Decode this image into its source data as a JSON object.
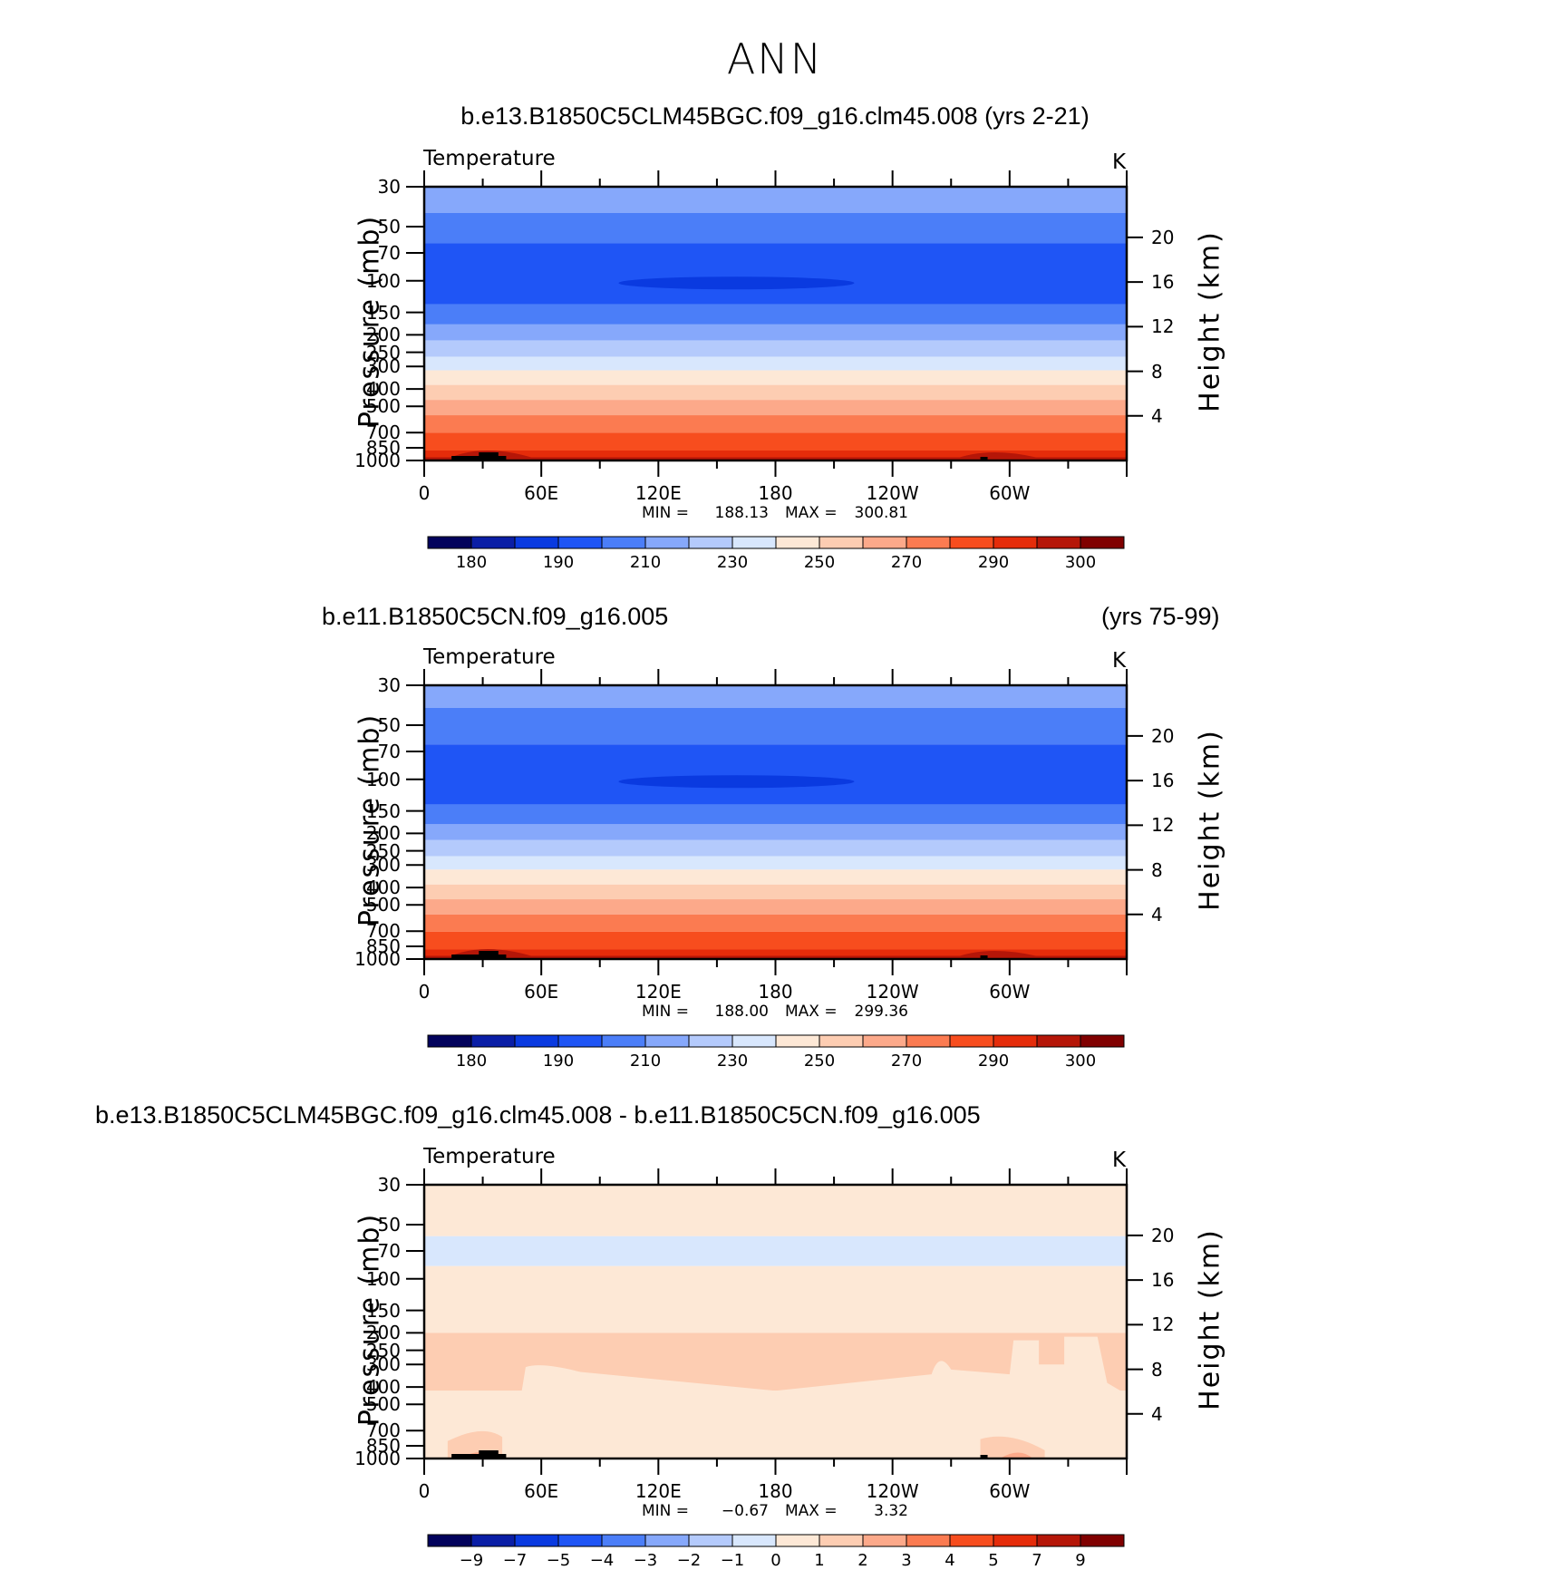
{
  "page": {
    "title": "ANN"
  },
  "chart_data": [
    {
      "type": "heatmap",
      "title": "b.e13.B1850C5CLM45BGC.f09_g16.clm45.008 (yrs 2-21)",
      "title_right": "",
      "variable": "Temperature",
      "units": "K",
      "ylabel": "Pressure (mb)",
      "ylabel_right": "Height (km)",
      "x_ticks": [
        "0",
        "60E",
        "120E",
        "180",
        "120W",
        "60W"
      ],
      "y_ticks": [
        "30",
        "50",
        "70",
        "100",
        "150",
        "200",
        "250",
        "300",
        "400",
        "500",
        "700",
        "850",
        "1000"
      ],
      "y_ticks_right": [
        "20",
        "16",
        "12",
        "8",
        "4"
      ],
      "min": 188.13,
      "max": 300.81,
      "min_label": "MIN =",
      "min_text": "188.13",
      "max_label": "MAX =",
      "max_text": "300.81",
      "colorbar_labels": [
        "180",
        "190",
        "210",
        "230",
        "250",
        "270",
        "290",
        "300"
      ],
      "colorbar_colors": [
        "#02025c",
        "#0a1ea6",
        "#0a3ae0",
        "#1f55f5",
        "#4b7ef8",
        "#86a8fb",
        "#b4cafc",
        "#d8e7fd",
        "#fde8d6",
        "#fdcdb2",
        "#fca98a",
        "#fb7b51",
        "#f74d1e",
        "#e52c0a",
        "#b51608",
        "#800000"
      ],
      "bands": [
        {
          "top": 30,
          "color": "#86a8fb"
        },
        {
          "top": 42,
          "color": "#4b7ef8"
        },
        {
          "top": 62,
          "color": "#1f55f5"
        },
        {
          "top": 135,
          "color": "#4b7ef8"
        },
        {
          "top": 175,
          "color": "#86a8fb"
        },
        {
          "top": 215,
          "color": "#b4cafc"
        },
        {
          "top": 265,
          "color": "#d8e7fd"
        },
        {
          "top": 315,
          "color": "#fde8d6"
        },
        {
          "top": 380,
          "color": "#fdcdb2"
        },
        {
          "top": 460,
          "color": "#fca98a"
        },
        {
          "top": 560,
          "color": "#fb7b51"
        },
        {
          "top": 700,
          "color": "#f74d1e"
        },
        {
          "top": 880,
          "color": "#e52c0a"
        }
      ]
    },
    {
      "type": "heatmap",
      "title": "b.e11.B1850C5CN.f09_g16.005",
      "title_right": "(yrs 75-99)",
      "variable": "Temperature",
      "units": "K",
      "ylabel": "Pressure (mb)",
      "ylabel_right": "Height (km)",
      "x_ticks": [
        "0",
        "60E",
        "120E",
        "180",
        "120W",
        "60W"
      ],
      "y_ticks": [
        "30",
        "50",
        "70",
        "100",
        "150",
        "200",
        "250",
        "300",
        "400",
        "500",
        "700",
        "850",
        "1000"
      ],
      "y_ticks_right": [
        "20",
        "16",
        "12",
        "8",
        "4"
      ],
      "min": 188.0,
      "max": 299.36,
      "min_label": "MIN =",
      "min_text": "188.00",
      "max_label": "MAX =",
      "max_text": "299.36",
      "colorbar_labels": [
        "180",
        "190",
        "210",
        "230",
        "250",
        "270",
        "290",
        "300"
      ],
      "colorbar_colors": [
        "#02025c",
        "#0a1ea6",
        "#0a3ae0",
        "#1f55f5",
        "#4b7ef8",
        "#86a8fb",
        "#b4cafc",
        "#d8e7fd",
        "#fde8d6",
        "#fdcdb2",
        "#fca98a",
        "#fb7b51",
        "#f74d1e",
        "#e52c0a",
        "#b51608",
        "#800000"
      ],
      "bands": [
        {
          "top": 30,
          "color": "#86a8fb"
        },
        {
          "top": 40,
          "color": "#4b7ef8"
        },
        {
          "top": 64,
          "color": "#1f55f5"
        },
        {
          "top": 138,
          "color": "#4b7ef8"
        },
        {
          "top": 178,
          "color": "#86a8fb"
        },
        {
          "top": 218,
          "color": "#b4cafc"
        },
        {
          "top": 268,
          "color": "#d8e7fd"
        },
        {
          "top": 318,
          "color": "#fde8d6"
        },
        {
          "top": 385,
          "color": "#fdcdb2"
        },
        {
          "top": 465,
          "color": "#fca98a"
        },
        {
          "top": 565,
          "color": "#fb7b51"
        },
        {
          "top": 705,
          "color": "#f74d1e"
        },
        {
          "top": 885,
          "color": "#e52c0a"
        }
      ]
    },
    {
      "type": "heatmap",
      "title": "b.e13.B1850C5CLM45BGC.f09_g16.clm45.008 - b.e11.B1850C5CN.f09_g16.005",
      "title_right": "",
      "variable": "Temperature",
      "units": "K",
      "ylabel": "Pressure (mb)",
      "ylabel_right": "Height (km)",
      "x_ticks": [
        "0",
        "60E",
        "120E",
        "180",
        "120W",
        "60W"
      ],
      "y_ticks": [
        "30",
        "50",
        "70",
        "100",
        "150",
        "200",
        "250",
        "300",
        "400",
        "500",
        "700",
        "850",
        "1000"
      ],
      "y_ticks_right": [
        "20",
        "16",
        "12",
        "8",
        "4"
      ],
      "min": -0.67,
      "max": 3.32,
      "min_label": "MIN =",
      "min_text": "−0.67",
      "max_label": "MAX =",
      "max_text": "3.32",
      "colorbar_labels": [
        "−9",
        "−7",
        "−5",
        "−4",
        "−3",
        "−2",
        "−1",
        "0",
        "1",
        "2",
        "3",
        "4",
        "5",
        "7",
        "9"
      ],
      "colorbar_colors": [
        "#02025c",
        "#0a1ea6",
        "#0a3ae0",
        "#1f55f5",
        "#4b7ef8",
        "#86a8fb",
        "#b4cafc",
        "#d8e7fd",
        "#fde8d6",
        "#fdcdb2",
        "#fca98a",
        "#fb7b51",
        "#f74d1e",
        "#e52c0a",
        "#b51608",
        "#800000"
      ],
      "bands": [
        {
          "top": 30,
          "color": "#fde8d6"
        },
        {
          "top": 58,
          "color": "#d8e7fd"
        },
        {
          "top": 85,
          "color": "#fde8d6"
        },
        {
          "top": 200,
          "color": "#fdcdb2"
        },
        {
          "top": 420,
          "color": "#fde8d6"
        }
      ]
    }
  ]
}
